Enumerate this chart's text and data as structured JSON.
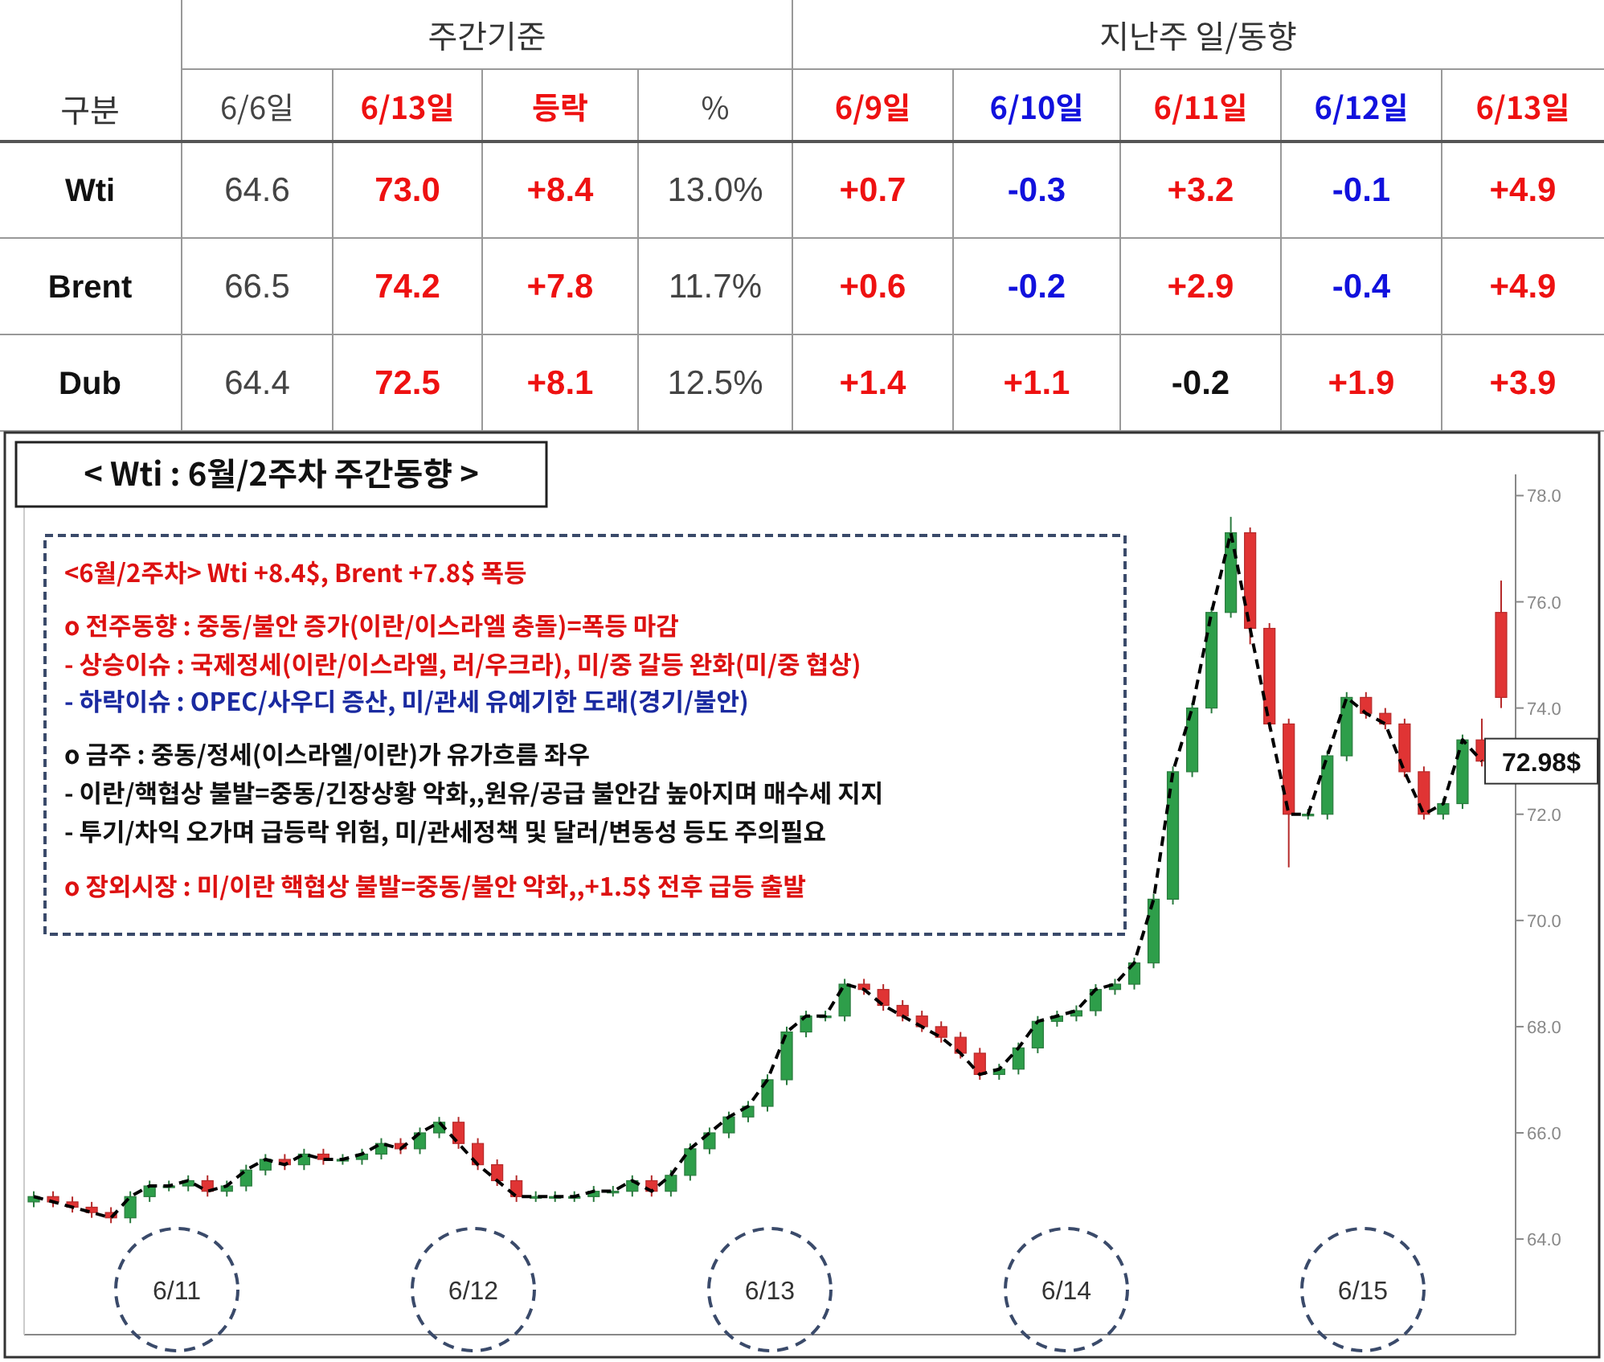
{
  "chart_data": [
    {
      "type": "other",
      "title": "구분",
      "annotations": [
        "주간기준",
        "지난주 일/동향"
      ],
      "categories": [
        "6/6일",
        "6/13일",
        "등락",
        "%",
        "6/9일",
        "6/10일",
        "6/11일",
        "6/12일",
        "6/13일"
      ],
      "y_categories": [
        "Wti",
        "Brent",
        "Dub"
      ],
      "cell_labels": [
        [
          "64.6",
          "73.0",
          "+8.4",
          "13.0%",
          "+0.7",
          "-0.3",
          "+3.2",
          "-0.1",
          "+4.9"
        ],
        [
          "66.5",
          "74.2",
          "+7.8",
          "11.7%",
          "+0.6",
          "-0.2",
          "+2.9",
          "-0.4",
          "+4.9"
        ],
        [
          "64.4",
          "72.5",
          "+8.1",
          "12.5%",
          "+1.4",
          "+1.1",
          "-0.2",
          "+1.9",
          "+3.9"
        ]
      ],
      "colors": [
        [
          "#444444",
          "#ee1111",
          "#ee1111",
          "#444444",
          "#ee1111",
          "#1111dd",
          "#ee1111",
          "#1111dd",
          "#ee1111"
        ],
        [
          "#444444",
          "#ee1111",
          "#ee1111",
          "#444444",
          "#ee1111",
          "#1111dd",
          "#ee1111",
          "#1111dd",
          "#ee1111"
        ],
        [
          "#444444",
          "#ee1111",
          "#ee1111",
          "#444444",
          "#ee1111",
          "#1111dd",
          "#ee1111",
          "#1111dd",
          "#ee1111"
        ],
        [
          "#444444",
          "#ee1111",
          "#ee1111",
          "#444444",
          "#ee1111",
          "#ee1111",
          "#111111",
          "#ee1111",
          "#ee1111"
        ]
      ]
    },
    {
      "type": "candlestick",
      "title": "< Wti : 6월/2주차 주간동향 >",
      "categories": [
        null,
        null,
        null,
        null,
        null,
        null,
        null,
        null,
        null,
        null,
        null,
        null,
        null,
        null,
        null,
        null,
        null,
        null,
        null,
        null,
        null,
        null,
        null,
        null,
        null,
        null,
        null,
        null,
        null,
        null,
        null,
        null,
        null,
        null,
        null,
        null,
        null,
        null,
        null,
        null,
        null,
        null,
        null,
        null,
        null,
        null,
        null,
        null,
        null,
        null,
        null,
        null,
        null,
        null,
        null,
        null,
        null,
        null,
        null,
        null,
        null,
        null,
        null,
        null,
        null,
        null,
        null,
        null,
        null,
        null,
        null,
        null,
        null,
        null,
        null,
        null,
        null
      ],
      "ohlc": [
        [
          64.7,
          64.9,
          64.6,
          64.8
        ],
        [
          64.8,
          64.9,
          64.6,
          64.7
        ],
        [
          64.7,
          64.8,
          64.5,
          64.6
        ],
        [
          64.6,
          64.7,
          64.4,
          64.5
        ],
        [
          64.5,
          64.6,
          64.3,
          64.4
        ],
        [
          64.4,
          64.9,
          64.3,
          64.8
        ],
        [
          64.8,
          65.1,
          64.7,
          65.0
        ],
        [
          65.0,
          65.1,
          64.9,
          65.0
        ],
        [
          65.0,
          65.2,
          64.9,
          65.1
        ],
        [
          65.1,
          65.2,
          64.8,
          64.9
        ],
        [
          64.9,
          65.1,
          64.8,
          65.0
        ],
        [
          65.0,
          65.4,
          64.9,
          65.3
        ],
        [
          65.3,
          65.6,
          65.2,
          65.5
        ],
        [
          65.5,
          65.6,
          65.3,
          65.4
        ],
        [
          65.4,
          65.7,
          65.3,
          65.6
        ],
        [
          65.6,
          65.7,
          65.4,
          65.5
        ],
        [
          65.5,
          65.6,
          65.4,
          65.5
        ],
        [
          65.5,
          65.7,
          65.4,
          65.6
        ],
        [
          65.6,
          65.9,
          65.5,
          65.8
        ],
        [
          65.8,
          65.9,
          65.6,
          65.7
        ],
        [
          65.7,
          66.1,
          65.6,
          66.0
        ],
        [
          66.0,
          66.3,
          65.9,
          66.2
        ],
        [
          66.2,
          66.3,
          65.7,
          65.8
        ],
        [
          65.8,
          65.9,
          65.3,
          65.4
        ],
        [
          65.4,
          65.5,
          65.0,
          65.1
        ],
        [
          65.1,
          65.2,
          64.7,
          64.8
        ],
        [
          64.8,
          64.9,
          64.7,
          64.8
        ],
        [
          64.8,
          64.9,
          64.7,
          64.8
        ],
        [
          64.8,
          64.9,
          64.7,
          64.8
        ],
        [
          64.8,
          65.0,
          64.7,
          64.9
        ],
        [
          64.9,
          65.0,
          64.8,
          64.9
        ],
        [
          64.9,
          65.2,
          64.8,
          65.1
        ],
        [
          65.1,
          65.2,
          64.8,
          64.9
        ],
        [
          64.9,
          65.3,
          64.8,
          65.2
        ],
        [
          65.2,
          65.8,
          65.1,
          65.7
        ],
        [
          65.7,
          66.1,
          65.6,
          66.0
        ],
        [
          66.0,
          66.4,
          65.9,
          66.3
        ],
        [
          66.3,
          66.6,
          66.2,
          66.5
        ],
        [
          66.5,
          67.1,
          66.4,
          67.0
        ],
        [
          67.0,
          68.0,
          66.9,
          67.9
        ],
        [
          67.9,
          68.3,
          67.8,
          68.2
        ],
        [
          68.2,
          68.3,
          68.1,
          68.2
        ],
        [
          68.2,
          68.9,
          68.1,
          68.8
        ],
        [
          68.8,
          68.9,
          68.6,
          68.7
        ],
        [
          68.7,
          68.8,
          68.3,
          68.4
        ],
        [
          68.4,
          68.5,
          68.1,
          68.2
        ],
        [
          68.2,
          68.3,
          67.9,
          68.0
        ],
        [
          68.0,
          68.1,
          67.7,
          67.8
        ],
        [
          67.8,
          67.9,
          67.4,
          67.5
        ],
        [
          67.5,
          67.6,
          67.0,
          67.1
        ],
        [
          67.1,
          67.3,
          67.0,
          67.2
        ],
        [
          67.2,
          67.7,
          67.1,
          67.6
        ],
        [
          67.6,
          68.2,
          67.5,
          68.1
        ],
        [
          68.1,
          68.3,
          68.0,
          68.2
        ],
        [
          68.2,
          68.4,
          68.1,
          68.3
        ],
        [
          68.3,
          68.8,
          68.2,
          68.7
        ],
        [
          68.7,
          68.9,
          68.6,
          68.8
        ],
        [
          68.8,
          69.3,
          68.7,
          69.2
        ],
        [
          69.2,
          70.5,
          69.1,
          70.4
        ],
        [
          70.4,
          72.9,
          70.3,
          72.8
        ],
        [
          72.8,
          74.1,
          72.7,
          74.0
        ],
        [
          74.0,
          75.9,
          73.9,
          75.8
        ],
        [
          75.8,
          77.6,
          75.7,
          77.3
        ],
        [
          77.3,
          77.4,
          75.2,
          75.5
        ],
        [
          75.5,
          75.6,
          73.6,
          73.7
        ],
        [
          73.7,
          73.8,
          71.0,
          72.0
        ],
        [
          72.0,
          72.1,
          71.9,
          72.0
        ],
        [
          72.0,
          73.2,
          71.9,
          73.1
        ],
        [
          73.1,
          74.3,
          73.0,
          74.2
        ],
        [
          74.2,
          74.3,
          73.8,
          73.9
        ],
        [
          73.9,
          74.0,
          73.6,
          73.7
        ],
        [
          73.7,
          73.8,
          72.7,
          72.8
        ],
        [
          72.8,
          72.9,
          71.9,
          72.0
        ],
        [
          72.0,
          72.3,
          71.9,
          72.2
        ],
        [
          72.2,
          73.5,
          72.1,
          73.4
        ],
        [
          73.4,
          73.8,
          72.9,
          73.0
        ],
        [
          75.8,
          76.4,
          74.0,
          74.2
        ]
      ],
      "series": [
        {
          "type": "line",
          "color": "#000000",
          "values": [
            64.8,
            64.7,
            64.6,
            64.5,
            64.4,
            64.8,
            65.0,
            65.0,
            65.1,
            64.9,
            65.0,
            65.3,
            65.5,
            65.4,
            65.6,
            65.5,
            65.5,
            65.6,
            65.8,
            65.7,
            66.0,
            66.2,
            65.8,
            65.4,
            65.1,
            64.8,
            64.8,
            64.8,
            64.8,
            64.9,
            64.9,
            65.1,
            64.9,
            65.2,
            65.7,
            66.0,
            66.3,
            66.5,
            67.0,
            67.9,
            68.2,
            68.2,
            68.8,
            68.7,
            68.4,
            68.2,
            68.0,
            67.8,
            67.5,
            67.1,
            67.2,
            67.6,
            68.1,
            68.2,
            68.3,
            68.7,
            68.8,
            69.2,
            70.4,
            72.8,
            74.0,
            75.8,
            77.3,
            75.5,
            73.7,
            72.0,
            72.0,
            73.1,
            74.2,
            73.9,
            73.7,
            72.8,
            72.0,
            72.2,
            73.4,
            73.0,
            null
          ]
        }
      ],
      "line_style": "dashed",
      "ylim": [
        62.2,
        78.4
      ],
      "yticks": [
        {
          "value": 64,
          "label": "64.0"
        },
        {
          "value": 66,
          "label": "66.0"
        },
        {
          "value": 68,
          "label": "68.0"
        },
        {
          "value": 70,
          "label": "70.0"
        },
        {
          "value": 72,
          "label": "72.0"
        },
        {
          "value": 74,
          "label": "74.0"
        },
        {
          "value": 76,
          "label": "76.0"
        },
        {
          "value": 78,
          "label": "78.0"
        }
      ],
      "tick_labels": "y",
      "annotations": [
        "6/11",
        "6/12",
        "6/13",
        "6/14",
        "6/15",
        "72.98$"
      ]
    },
    {
      "type": "other",
      "annotations": [
        "<6월/2주차> Wti +8.4$, Brent  +7.8$ 폭등",
        "o 전주동향 : 중동/불안 증가(이란/이스라엘 충돌)=폭등 마감",
        " - 상승이슈 : 국제정세(이란/이스라엘, 러/우크라), 미/중 갈등 완화(미/중 협상)",
        " - 하락이슈 : OPEC/사우디 증산, 미/관세 유예기한 도래(경기/불안)",
        "o 금주 : 중동/정세(이스라엘/이란)가  유가흐름 좌우",
        " - 이란/핵협상 불발=중동/긴장상황 악화,,원유/공급 불안감 높아지며 매수세 지지",
        " - 투기/차익 오가며 급등락 위험, 미/관세정책 및 달러/변동성 등도 주의필요",
        "o 장외시장 : 미/이란 핵협상 불발=중동/불안 악화,,+1.5$ 전후 급등 출발"
      ],
      "colors": [
        "#dd1111",
        "#dd1111",
        "#dd1111",
        "#1a2aa0",
        "#111111",
        "#111111",
        "#111111",
        "#dd1111"
      ]
    }
  ]
}
